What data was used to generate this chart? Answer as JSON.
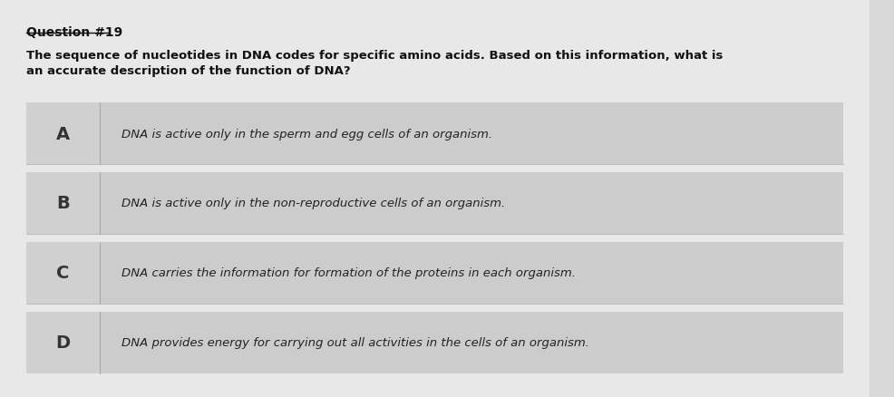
{
  "background_color": "#d8d8d8",
  "content_bg": "#e8e8e8",
  "question_label": "Question #19",
  "question_text_line1": "The sequence of nucleotides in DNA codes for specific amino acids. Based on this information, what is",
  "question_text_line2": "an accurate description of the function of DNA?",
  "options": [
    {
      "letter": "A",
      "text": "DNA is active only in the sperm and egg cells of an organism."
    },
    {
      "letter": "B",
      "text": "DNA is active only in the non-reproductive cells of an organism."
    },
    {
      "letter": "C",
      "text": "DNA carries the information for formation of the proteins in each organism."
    },
    {
      "letter": "D",
      "text": "DNA provides energy for carrying out all activities in the cells of an organism."
    }
  ],
  "letter_color": "#333333",
  "text_color": "#222222",
  "title_color": "#111111",
  "divider_color": "#aaaaaa",
  "option_bg": "#d0d0d0",
  "option_text_bg": "#cccccc"
}
